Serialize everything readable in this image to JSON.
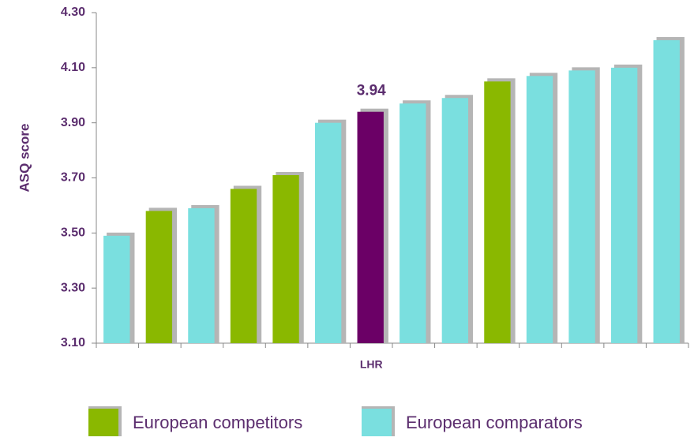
{
  "chart_data": {
    "type": "bar",
    "y_label": "ASQ score",
    "categories": [
      null,
      null,
      null,
      null,
      null,
      null,
      "LHR",
      null,
      null,
      null,
      null,
      null,
      null,
      null
    ],
    "values": [
      3.49,
      3.58,
      3.59,
      3.66,
      3.71,
      3.9,
      3.94,
      3.97,
      3.99,
      4.05,
      4.07,
      4.09,
      4.1,
      4.2
    ],
    "value_labels": [
      null,
      null,
      null,
      null,
      null,
      null,
      "3.94",
      null,
      null,
      null,
      null,
      null,
      null,
      null
    ],
    "colors": [
      "#7adfdf",
      "#8ab800",
      "#7adfdf",
      "#8ab800",
      "#8ab800",
      "#7adfdf",
      "#6b0066",
      "#7adfdf",
      "#7adfdf",
      "#8ab800",
      "#7adfdf",
      "#7adfdf",
      "#7adfdf",
      "#7adfdf"
    ],
    "legend": [
      {
        "name": "European competitors",
        "color": "#8ab800"
      },
      {
        "name": "European comparators",
        "color": "#7adfdf"
      }
    ],
    "ylim": [
      3.1,
      4.3
    ],
    "yticks": [
      {
        "value": 3.1,
        "label": "3.10"
      },
      {
        "value": 3.3,
        "label": "3.30"
      },
      {
        "value": 3.5,
        "label": "3.50"
      },
      {
        "value": 3.7,
        "label": "3.70"
      },
      {
        "value": 3.9,
        "label": "3.90"
      },
      {
        "value": 4.1,
        "label": "4.10"
      },
      {
        "value": 4.3,
        "label": "4.30"
      }
    ],
    "grid": false
  }
}
